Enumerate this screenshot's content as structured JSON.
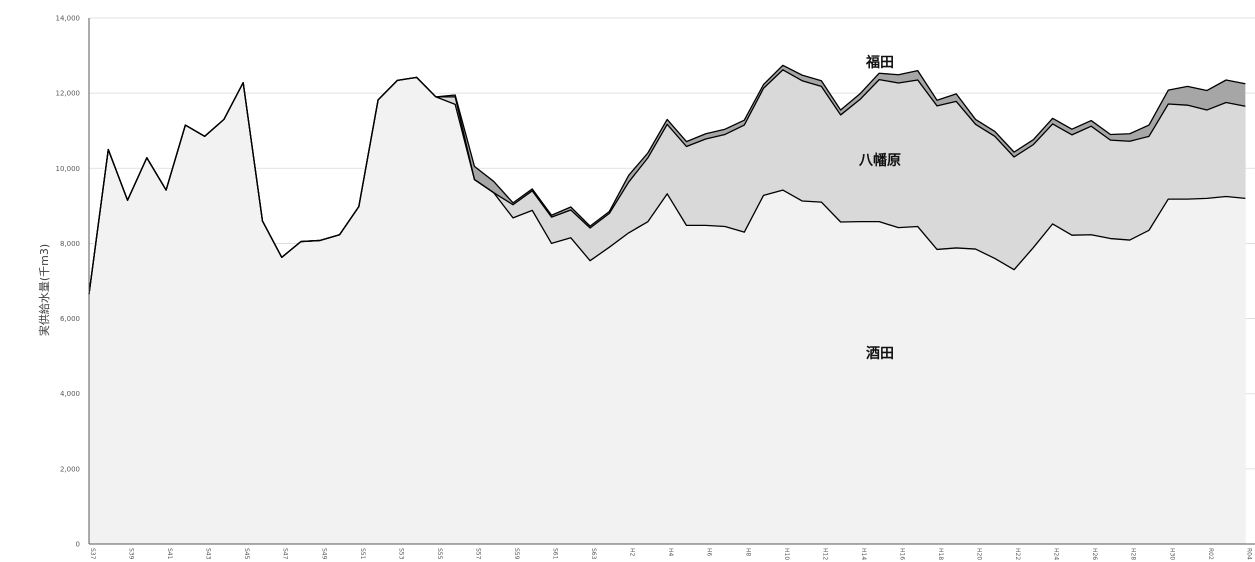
{
  "chart_data": {
    "type": "area",
    "stacked": true,
    "ylabel": "実供給水量(千m3)",
    "ylim": [
      0,
      14000
    ],
    "yticks": [
      0,
      2000,
      4000,
      6000,
      8000,
      10000,
      12000,
      14000
    ],
    "ytick_labels": [
      "0",
      "2,000",
      "4,000",
      "6,000",
      "8,000",
      "10,000",
      "12,000",
      "14,000"
    ],
    "grid": "horizontal",
    "x": [
      "S37",
      "S38",
      "S39",
      "S40",
      "S41",
      "S42",
      "S43",
      "S44",
      "S45",
      "S46",
      "S47",
      "S48",
      "S49",
      "S50",
      "S51",
      "S52",
      "S53",
      "S54",
      "S55",
      "S56",
      "S57",
      "S58",
      "S59",
      "S60",
      "S61",
      "S62",
      "S63",
      "H1",
      "H2",
      "H3",
      "H4",
      "H5",
      "H6",
      "H7",
      "H8",
      "H9",
      "H10",
      "H11",
      "H12",
      "H13",
      "H14",
      "H15",
      "H16",
      "H17",
      "H18",
      "H19",
      "H20",
      "H21",
      "H22",
      "H23",
      "H24",
      "H25",
      "H26",
      "H27",
      "H28",
      "H29",
      "H30",
      "R01",
      "R02",
      "R03",
      "R04"
    ],
    "xtick_labels": [
      "S37",
      "S39",
      "S41",
      "S43",
      "S45",
      "S47",
      "S49",
      "S51",
      "S53",
      "S55",
      "S57",
      "S59",
      "S61",
      "S63",
      "H2",
      "H4",
      "H6",
      "H8",
      "H10",
      "H12",
      "H14",
      "H16",
      "H18",
      "H20",
      "H22",
      "H24",
      "H26",
      "H28",
      "H30",
      "R02",
      "R04"
    ],
    "series": [
      {
        "name": "酒田",
        "values": [
          6650,
          10500,
          9150,
          10280,
          9420,
          11150,
          10850,
          11300,
          12280,
          8600,
          7630,
          8050,
          8080,
          8230,
          8980,
          11820,
          12340,
          12420,
          11900,
          11700,
          9700,
          9350,
          8680,
          8880,
          8000,
          8150,
          7540,
          7900,
          8280,
          8580,
          9320,
          8480,
          8480,
          8450,
          8300,
          9280,
          9420,
          9130,
          9100,
          8570,
          8580,
          8580,
          8420,
          8450,
          7840,
          7880,
          7850,
          7600,
          7300,
          7890,
          8520,
          8220,
          8230,
          8130,
          8090,
          8350,
          9180,
          9180,
          9200,
          9250,
          9200
        ]
      },
      {
        "name": "八幡原",
        "values": [
          0,
          0,
          0,
          0,
          0,
          0,
          0,
          0,
          0,
          0,
          0,
          0,
          0,
          0,
          0,
          0,
          0,
          0,
          0,
          200,
          0,
          0,
          350,
          520,
          700,
          740,
          870,
          900,
          1350,
          1700,
          1850,
          2100,
          2300,
          2450,
          2850,
          2850,
          3200,
          3200,
          3080,
          2850,
          3250,
          3780,
          3850,
          3900,
          3820,
          3900,
          3320,
          3250,
          3000,
          2740,
          2660,
          2670,
          2890,
          2620,
          2630,
          2500,
          2530,
          2500,
          2350,
          2500,
          2450
        ]
      },
      {
        "name": "福田",
        "values": [
          0,
          0,
          0,
          0,
          0,
          0,
          0,
          0,
          0,
          0,
          0,
          0,
          0,
          0,
          0,
          0,
          0,
          0,
          0,
          50,
          350,
          300,
          50,
          50,
          50,
          80,
          50,
          50,
          180,
          130,
          130,
          130,
          140,
          140,
          130,
          100,
          120,
          150,
          150,
          130,
          150,
          170,
          220,
          250,
          150,
          200,
          130,
          130,
          130,
          130,
          150,
          150,
          150,
          150,
          200,
          300,
          370,
          500,
          520,
          600,
          600
        ]
      }
    ],
    "annotations": [
      "福田",
      "八幡原",
      "酒田"
    ]
  }
}
